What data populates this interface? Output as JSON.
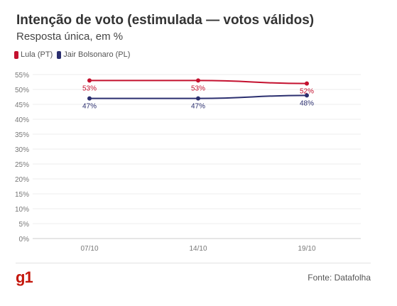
{
  "header": {
    "title": "Intenção de voto (estimulada — votos válidos)",
    "subtitle": "Resposta única, em %"
  },
  "footer": {
    "logo": "g1",
    "source": "Fonte: Datafolha"
  },
  "chart_data": {
    "type": "line",
    "title": "Intenção de voto (estimulada — votos válidos)",
    "subtitle": "Resposta única, em %",
    "categories": [
      "07/10",
      "14/10",
      "19/10"
    ],
    "series": [
      {
        "name": "Lula (PT)",
        "color": "#c4112f",
        "values": [
          53,
          53,
          52
        ],
        "labels": [
          "53%",
          "53%",
          "52%"
        ]
      },
      {
        "name": "Jair Bolsonaro (PL)",
        "color": "#2b2f6f",
        "values": [
          47,
          47,
          48
        ],
        "labels": [
          "47%",
          "47%",
          "48%"
        ]
      }
    ],
    "ylim": [
      0,
      55
    ],
    "yticks": [
      "0%",
      "5%",
      "10%",
      "15%",
      "20%",
      "25%",
      "30%",
      "35%",
      "40%",
      "45%",
      "50%",
      "55%"
    ],
    "ytick_values": [
      0,
      5,
      10,
      15,
      20,
      25,
      30,
      35,
      40,
      45,
      50,
      55
    ],
    "grid": true,
    "legend": "top-left"
  }
}
